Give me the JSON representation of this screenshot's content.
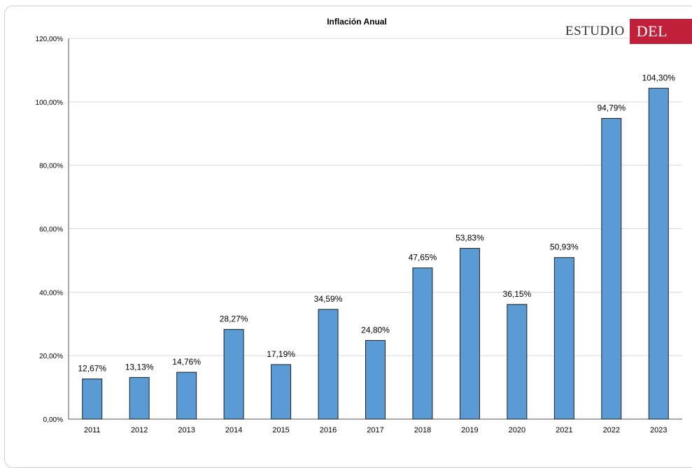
{
  "chart_data": {
    "type": "bar",
    "title": "Inflación Anual",
    "xlabel": "",
    "ylabel": "",
    "categories": [
      "2011",
      "2012",
      "2013",
      "2014",
      "2015",
      "2016",
      "2017",
      "2018",
      "2019",
      "2020",
      "2021",
      "2022",
      "2023"
    ],
    "values": [
      12.67,
      13.13,
      14.76,
      28.27,
      17.19,
      34.59,
      24.8,
      47.65,
      53.83,
      36.15,
      50.93,
      94.79,
      104.3
    ],
    "data_labels": [
      "12,67%",
      "13,13%",
      "14,76%",
      "28,27%",
      "17,19%",
      "34,59%",
      "24,80%",
      "47,65%",
      "53,83%",
      "36,15%",
      "50,93%",
      "94,79%",
      "104,30%"
    ],
    "yticks": [
      0,
      20,
      40,
      60,
      80,
      100,
      120
    ],
    "ytick_labels": [
      "0,00%",
      "20,00%",
      "40,00%",
      "60,00%",
      "80,00%",
      "100,00%",
      "120,00%"
    ],
    "ylim": [
      0,
      120
    ],
    "grid": true,
    "bar_color": "#5b9bd5",
    "bar_edge_color": "#1f1f1f"
  },
  "logo": {
    "word1": "ESTUDIO",
    "word2": "DEL AMO",
    "color": "#c0203a"
  }
}
